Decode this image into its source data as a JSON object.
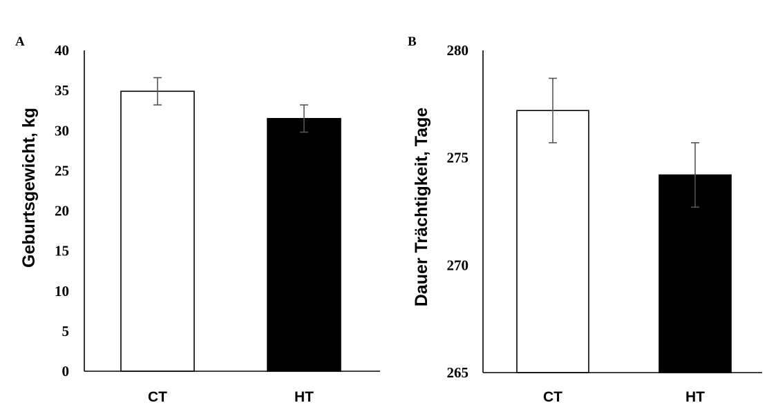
{
  "chart_data": [
    {
      "panel": "A",
      "type": "bar",
      "categories": [
        "CT",
        "HT"
      ],
      "values": [
        34.9,
        31.5
      ],
      "errors": [
        1.7,
        1.7
      ],
      "bar_colors": [
        "#ffffff",
        "#000000"
      ],
      "xlabel": "",
      "ylabel": "Geburtsgewicht, kg",
      "ylim": [
        0,
        40
      ],
      "yticks": [
        0,
        5,
        10,
        15,
        20,
        25,
        30,
        35,
        40
      ],
      "grid": false
    },
    {
      "panel": "B",
      "type": "bar",
      "categories": [
        "CT",
        "HT"
      ],
      "values": [
        277.2,
        274.2
      ],
      "errors": [
        1.5,
        1.5
      ],
      "bar_colors": [
        "#ffffff",
        "#000000"
      ],
      "xlabel": "",
      "ylabel": "Dauer Trächtigkeit, Tage",
      "ylim": [
        265,
        280
      ],
      "yticks": [
        265,
        270,
        275,
        280
      ],
      "grid": false
    }
  ]
}
